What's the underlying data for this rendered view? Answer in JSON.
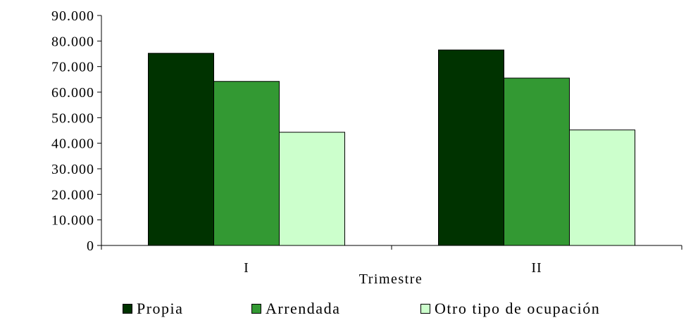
{
  "chart_data": {
    "type": "bar",
    "categories": [
      "I",
      "II"
    ],
    "series": [
      {
        "name": "Propia",
        "values": [
          75200,
          76500
        ],
        "color": "#003300"
      },
      {
        "name": "Arrendada",
        "values": [
          64200,
          65500
        ],
        "color": "#339933"
      },
      {
        "name": "Otro tipo de ocupación",
        "values": [
          44300,
          45200
        ],
        "color": "#ccffcc"
      }
    ],
    "xlabel": "Trimestre",
    "ylabel": "",
    "ylim": [
      0,
      90000
    ],
    "yticks": [
      "0",
      "10.000",
      "20.000",
      "30.000",
      "40.000",
      "50.000",
      "60.000",
      "70.000",
      "80.000",
      "90.000"
    ],
    "grid": false,
    "legend_position": "bottom"
  }
}
